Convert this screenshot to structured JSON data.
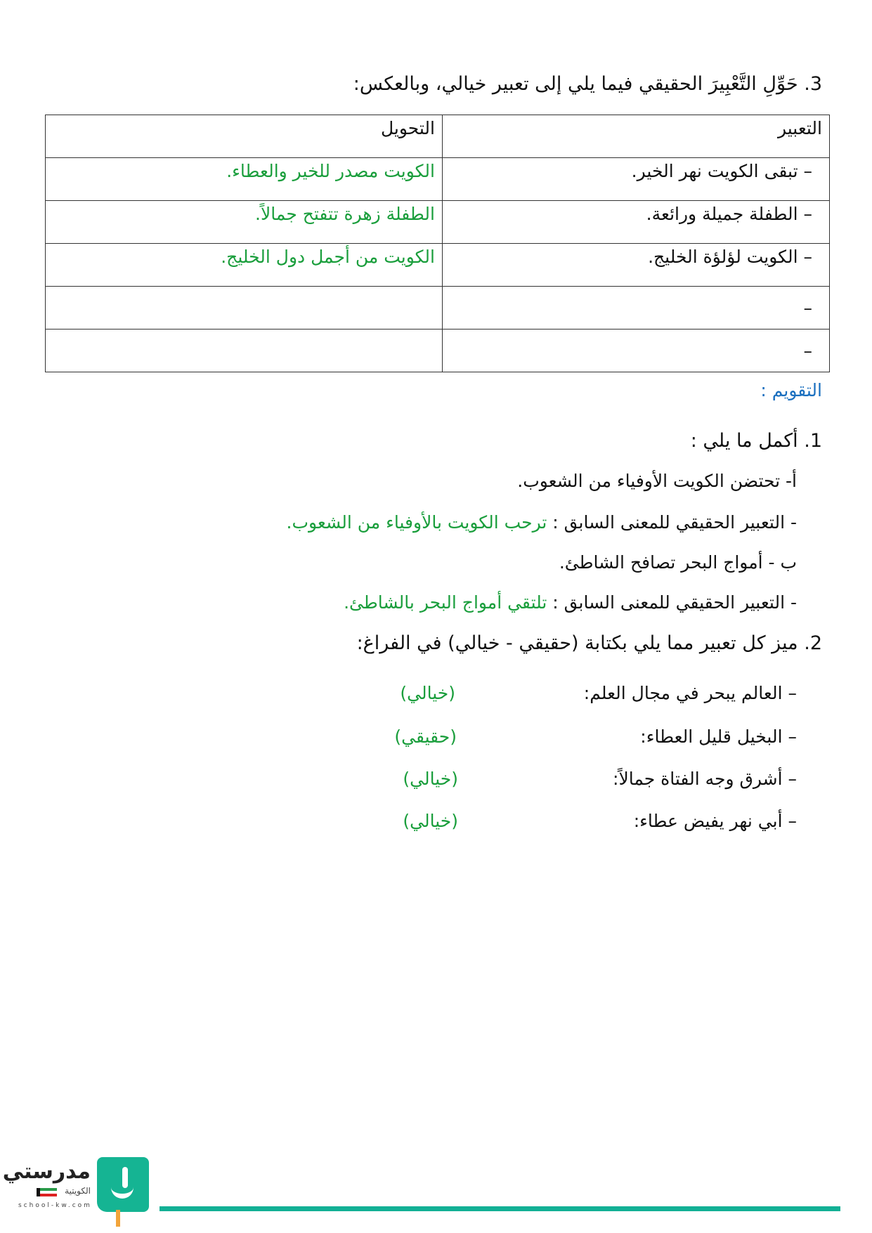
{
  "q3": {
    "title": "3. حَوِّلِ التَّعْبِيرَ الحقيقي فيما يلي إلى تعبير خيالي، وبالعكس:",
    "headers": [
      "التعبير",
      "التحويل"
    ],
    "rows": [
      {
        "expr": "–  تبقى الكويت نهر الخير.",
        "conv": "الكويت مصدر للخير والعطاء."
      },
      {
        "expr": "–  الطفلة جميلة ورائعة.",
        "conv": "الطفلة زهرة تتفتح جمالاً."
      },
      {
        "expr": "–  الكويت لؤلؤة الخليج.",
        "conv": "الكويت من أجمل دول الخليج."
      },
      {
        "expr": "–",
        "conv": ""
      },
      {
        "expr": "–",
        "conv": ""
      }
    ]
  },
  "evaluation": {
    "heading": "التقويم :",
    "q1": {
      "title": "1. أكمل ما يلي :",
      "a": "أ- تحتضن الكويت الأوفياء من الشعوب.",
      "a_prompt": "- التعبير الحقيقي للمعنى السابق : ",
      "a_answer": "ترحب الكويت بالأوفياء من الشعوب.",
      "b": "ب -  أمواج البحر تصافح الشاطئ.",
      "b_prompt": "- التعبير الحقيقي للمعنى السابق : ",
      "b_answer": "تلتقي أمواج البحر بالشاطئ."
    },
    "q2": {
      "title": "2. ميز كل تعبير مما يلي بكتابة (حقيقي - خيالي) في الفراغ:",
      "items": [
        {
          "text": "–  العالم يبحر في مجال العلم:",
          "answer": "(خيالي)"
        },
        {
          "text": "–  البخيل قليل العطاء:",
          "answer": "(حقيقي)"
        },
        {
          "text": "–  أشرق وجه الفتاة جمالاً:",
          "answer": "(خيالي)"
        },
        {
          "text": "–  أبي نهر يفيض عطاء:",
          "answer": "(خيالي)"
        }
      ]
    }
  },
  "footer": {
    "logo_text": "مدرستي",
    "logo_sub": "الكويتية",
    "logo_url": "school-kw.com"
  },
  "colors": {
    "answer": "#1a9e3c",
    "heading": "#1a6fbf",
    "brand": "#13b095"
  }
}
